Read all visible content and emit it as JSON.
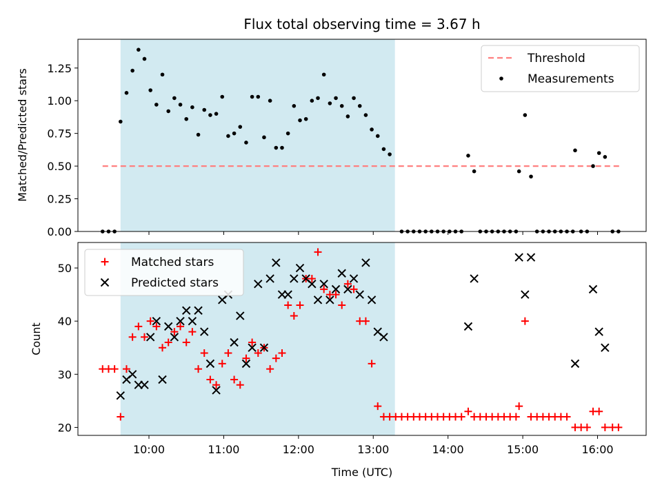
{
  "chart_data": {
    "type": "scatter",
    "title": "Flux total observing time = 3.67 h",
    "xlabel": "Time (UTC)",
    "xlim": [
      9.05,
      16.65
    ],
    "x_ticks": [
      10,
      11,
      12,
      13,
      14,
      15,
      16
    ],
    "x_tick_labels": [
      "10:00",
      "11:00",
      "12:00",
      "13:00",
      "14:00",
      "15:00",
      "16:00"
    ],
    "shaded_span": [
      9.62,
      13.29
    ],
    "shade_color": "#add8e6",
    "top": {
      "ylabel": "Matched/Predicted stars",
      "ylim": [
        0,
        1.47
      ],
      "y_ticks": [
        0,
        0.25,
        0.5,
        0.75,
        1.0,
        1.25
      ],
      "y_tick_labels": [
        "0.00",
        "0.25",
        "0.50",
        "0.75",
        "1.00",
        "1.25"
      ],
      "threshold": {
        "name": "Threshold",
        "value": 0.5,
        "x_range": [
          9.38,
          16.3
        ],
        "color": "#ff7f7f"
      },
      "measurements": {
        "name": "Measurements",
        "color": "#000000",
        "points": [
          [
            9.38,
            0
          ],
          [
            9.46,
            0
          ],
          [
            9.54,
            0
          ],
          [
            9.62,
            0.84
          ],
          [
            9.7,
            1.06
          ],
          [
            9.78,
            1.23
          ],
          [
            9.86,
            1.39
          ],
          [
            9.94,
            1.32
          ],
          [
            10.02,
            1.08
          ],
          [
            10.1,
            0.97
          ],
          [
            10.18,
            1.2
          ],
          [
            10.26,
            0.92
          ],
          [
            10.34,
            1.02
          ],
          [
            10.42,
            0.97
          ],
          [
            10.5,
            0.86
          ],
          [
            10.58,
            0.95
          ],
          [
            10.66,
            0.74
          ],
          [
            10.74,
            0.93
          ],
          [
            10.82,
            0.89
          ],
          [
            10.9,
            0.9
          ],
          [
            10.98,
            1.03
          ],
          [
            11.06,
            0.73
          ],
          [
            11.14,
            0.75
          ],
          [
            11.22,
            0.8
          ],
          [
            11.3,
            0.68
          ],
          [
            11.38,
            1.03
          ],
          [
            11.46,
            1.03
          ],
          [
            11.54,
            0.72
          ],
          [
            11.62,
            1.0
          ],
          [
            11.7,
            0.64
          ],
          [
            11.78,
            0.64
          ],
          [
            11.86,
            0.75
          ],
          [
            11.94,
            0.96
          ],
          [
            12.02,
            0.85
          ],
          [
            12.1,
            0.86
          ],
          [
            12.18,
            1.0
          ],
          [
            12.26,
            1.02
          ],
          [
            12.34,
            1.2
          ],
          [
            12.42,
            0.98
          ],
          [
            12.5,
            1.02
          ],
          [
            12.58,
            0.96
          ],
          [
            12.66,
            0.88
          ],
          [
            12.74,
            1.02
          ],
          [
            12.82,
            0.96
          ],
          [
            12.9,
            0.89
          ],
          [
            12.98,
            0.78
          ],
          [
            13.06,
            0.73
          ],
          [
            13.14,
            0.63
          ],
          [
            13.22,
            0.59
          ],
          [
            13.38,
            0
          ],
          [
            13.46,
            0
          ],
          [
            13.54,
            0
          ],
          [
            13.62,
            0
          ],
          [
            13.7,
            0
          ],
          [
            13.78,
            0
          ],
          [
            13.86,
            0
          ],
          [
            13.94,
            0
          ],
          [
            14.02,
            0
          ],
          [
            14.1,
            0
          ],
          [
            14.18,
            0
          ],
          [
            14.27,
            0.58
          ],
          [
            14.35,
            0.46
          ],
          [
            14.43,
            0
          ],
          [
            14.51,
            0
          ],
          [
            14.59,
            0
          ],
          [
            14.67,
            0
          ],
          [
            14.75,
            0
          ],
          [
            14.83,
            0
          ],
          [
            14.91,
            0
          ],
          [
            14.95,
            0.46
          ],
          [
            15.03,
            0.89
          ],
          [
            15.11,
            0.42
          ],
          [
            15.19,
            0
          ],
          [
            15.27,
            0
          ],
          [
            15.35,
            0
          ],
          [
            15.43,
            0
          ],
          [
            15.51,
            0
          ],
          [
            15.59,
            0
          ],
          [
            15.67,
            0
          ],
          [
            15.7,
            0.62
          ],
          [
            15.78,
            0
          ],
          [
            15.86,
            0
          ],
          [
            15.94,
            0.5
          ],
          [
            16.02,
            0.6
          ],
          [
            16.1,
            0.57
          ],
          [
            16.2,
            0
          ],
          [
            16.28,
            0
          ]
        ]
      }
    },
    "bottom": {
      "ylabel": "Count",
      "ylim": [
        18.5,
        54.8
      ],
      "y_ticks": [
        20,
        30,
        40,
        50
      ],
      "y_tick_labels": [
        "20",
        "30",
        "40",
        "50"
      ],
      "matched": {
        "name": "Matched stars",
        "color": "#ff0000",
        "points": [
          [
            9.38,
            31
          ],
          [
            9.46,
            31
          ],
          [
            9.54,
            31
          ],
          [
            9.62,
            22
          ],
          [
            9.7,
            31
          ],
          [
            9.78,
            37
          ],
          [
            9.86,
            39
          ],
          [
            9.94,
            37
          ],
          [
            10.02,
            40
          ],
          [
            10.1,
            39
          ],
          [
            10.18,
            35
          ],
          [
            10.26,
            36
          ],
          [
            10.34,
            38
          ],
          [
            10.42,
            39
          ],
          [
            10.5,
            36
          ],
          [
            10.58,
            38
          ],
          [
            10.66,
            31
          ],
          [
            10.74,
            34
          ],
          [
            10.82,
            29
          ],
          [
            10.9,
            28
          ],
          [
            10.98,
            32
          ],
          [
            11.06,
            34
          ],
          [
            11.14,
            29
          ],
          [
            11.22,
            28
          ],
          [
            11.3,
            33
          ],
          [
            11.38,
            36
          ],
          [
            11.46,
            34
          ],
          [
            11.54,
            35
          ],
          [
            11.62,
            31
          ],
          [
            11.7,
            33
          ],
          [
            11.78,
            34
          ],
          [
            11.86,
            43
          ],
          [
            11.94,
            41
          ],
          [
            12.02,
            43
          ],
          [
            12.1,
            48
          ],
          [
            12.18,
            48
          ],
          [
            12.26,
            53
          ],
          [
            12.34,
            46
          ],
          [
            12.42,
            45
          ],
          [
            12.5,
            45
          ],
          [
            12.58,
            43
          ],
          [
            12.66,
            47
          ],
          [
            12.74,
            46
          ],
          [
            12.82,
            40
          ],
          [
            12.9,
            40
          ],
          [
            12.98,
            32
          ],
          [
            13.06,
            24
          ],
          [
            13.14,
            22
          ],
          [
            13.22,
            22
          ],
          [
            13.3,
            22
          ],
          [
            13.38,
            22
          ],
          [
            13.46,
            22
          ],
          [
            13.54,
            22
          ],
          [
            13.62,
            22
          ],
          [
            13.7,
            22
          ],
          [
            13.78,
            22
          ],
          [
            13.86,
            22
          ],
          [
            13.94,
            22
          ],
          [
            14.02,
            22
          ],
          [
            14.1,
            22
          ],
          [
            14.18,
            22
          ],
          [
            14.27,
            23
          ],
          [
            14.35,
            22
          ],
          [
            14.43,
            22
          ],
          [
            14.51,
            22
          ],
          [
            14.59,
            22
          ],
          [
            14.67,
            22
          ],
          [
            14.75,
            22
          ],
          [
            14.83,
            22
          ],
          [
            14.91,
            22
          ],
          [
            14.95,
            24
          ],
          [
            15.03,
            40
          ],
          [
            15.11,
            22
          ],
          [
            15.19,
            22
          ],
          [
            15.27,
            22
          ],
          [
            15.35,
            22
          ],
          [
            15.43,
            22
          ],
          [
            15.51,
            22
          ],
          [
            15.59,
            22
          ],
          [
            15.7,
            20
          ],
          [
            15.78,
            20
          ],
          [
            15.86,
            20
          ],
          [
            15.94,
            23
          ],
          [
            16.02,
            23
          ],
          [
            16.1,
            20
          ],
          [
            16.2,
            20
          ],
          [
            16.28,
            20
          ]
        ]
      },
      "predicted": {
        "name": "Predicted stars",
        "color": "#000000",
        "points": [
          [
            9.62,
            26
          ],
          [
            9.7,
            29
          ],
          [
            9.78,
            30
          ],
          [
            9.86,
            28
          ],
          [
            9.94,
            28
          ],
          [
            10.02,
            37
          ],
          [
            10.1,
            40
          ],
          [
            10.18,
            29
          ],
          [
            10.26,
            39
          ],
          [
            10.34,
            37
          ],
          [
            10.42,
            40
          ],
          [
            10.5,
            42
          ],
          [
            10.58,
            40
          ],
          [
            10.66,
            42
          ],
          [
            10.74,
            38
          ],
          [
            10.82,
            32
          ],
          [
            10.9,
            27
          ],
          [
            10.98,
            44
          ],
          [
            11.06,
            45
          ],
          [
            11.14,
            36
          ],
          [
            11.22,
            41
          ],
          [
            11.3,
            32
          ],
          [
            11.38,
            35
          ],
          [
            11.46,
            47
          ],
          [
            11.54,
            35
          ],
          [
            11.62,
            48
          ],
          [
            11.7,
            51
          ],
          [
            11.78,
            45
          ],
          [
            11.86,
            45
          ],
          [
            11.94,
            48
          ],
          [
            12.02,
            50
          ],
          [
            12.1,
            48
          ],
          [
            12.18,
            47
          ],
          [
            12.26,
            44
          ],
          [
            12.34,
            47
          ],
          [
            12.42,
            44
          ],
          [
            12.5,
            46
          ],
          [
            12.58,
            49
          ],
          [
            12.66,
            46
          ],
          [
            12.74,
            48
          ],
          [
            12.82,
            45
          ],
          [
            12.9,
            51
          ],
          [
            12.98,
            44
          ],
          [
            13.06,
            38
          ],
          [
            13.14,
            37
          ],
          [
            14.27,
            39
          ],
          [
            14.35,
            48
          ],
          [
            14.95,
            52
          ],
          [
            15.03,
            45
          ],
          [
            15.11,
            52
          ],
          [
            15.7,
            32
          ],
          [
            15.94,
            46
          ],
          [
            16.02,
            38
          ],
          [
            16.1,
            35
          ]
        ]
      }
    }
  }
}
